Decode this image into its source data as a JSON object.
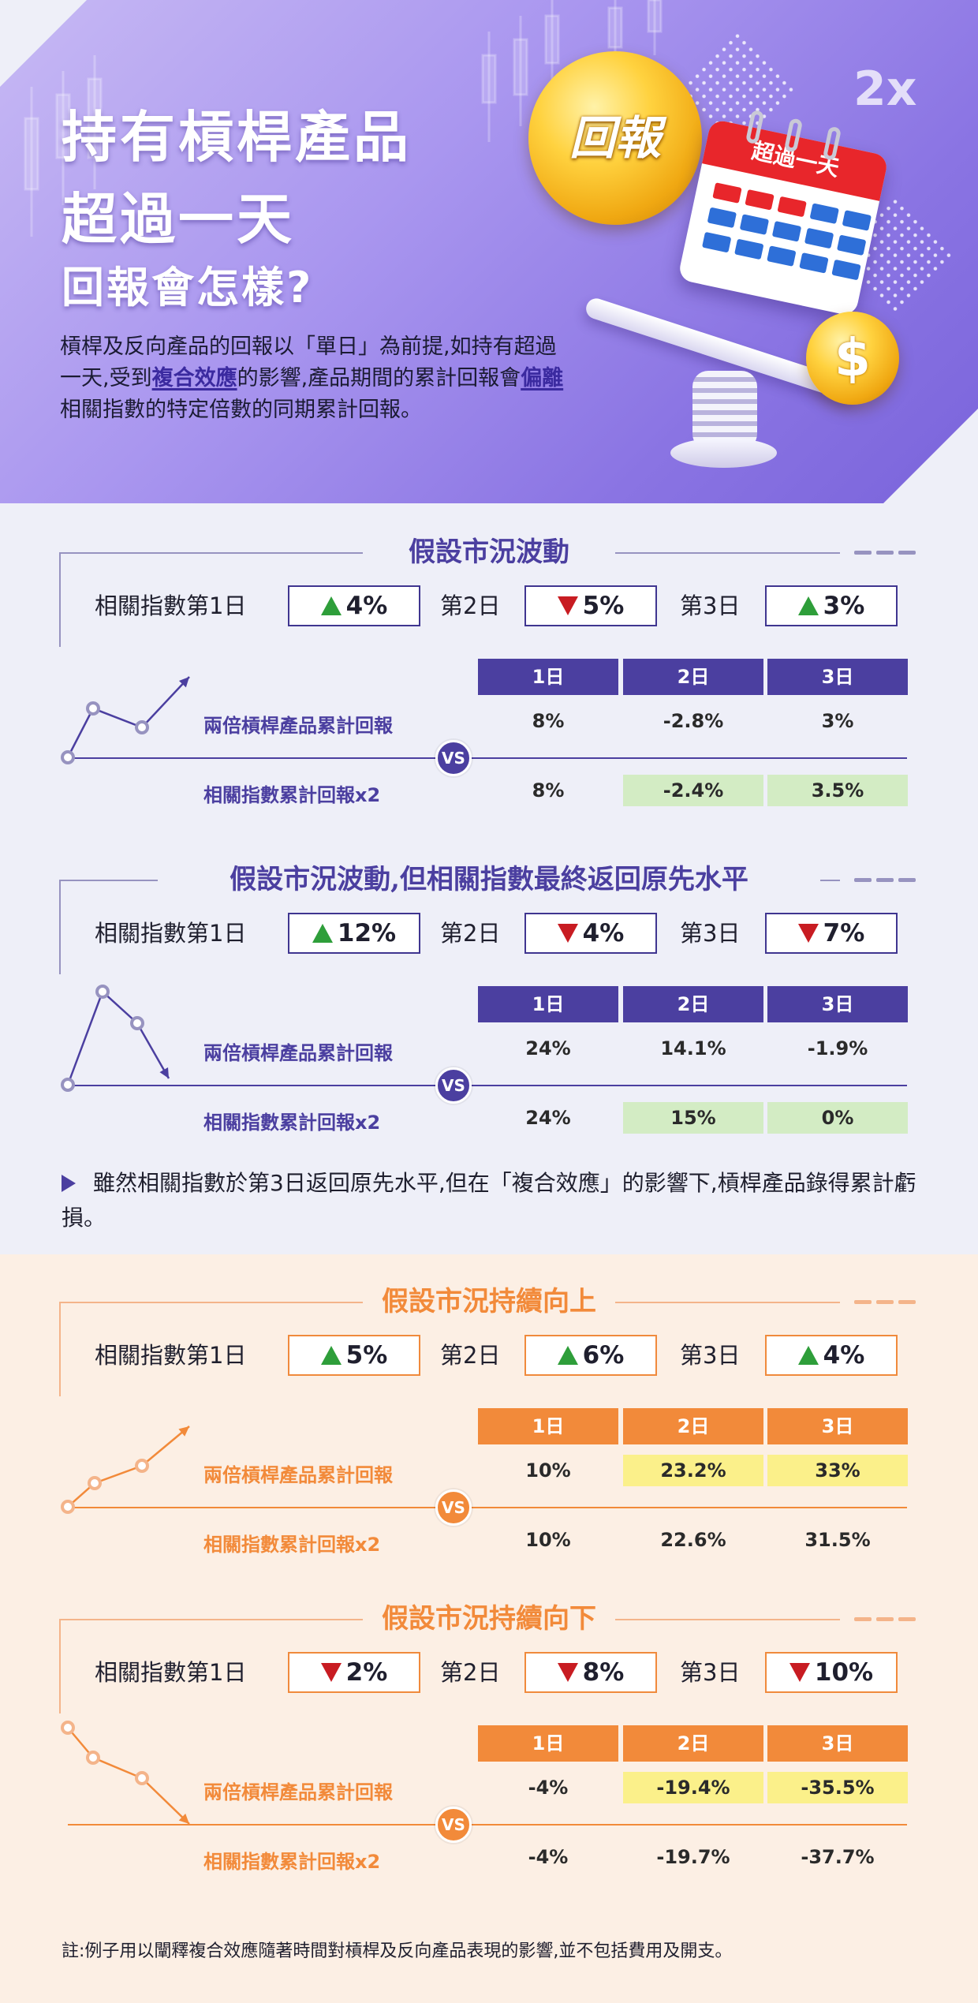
{
  "header": {
    "title_line1": "持有槓桿產品",
    "title_line2": "超過一天",
    "title_line3": "回報會怎樣?",
    "intro_a": "槓桿及反向產品的回報以「單日」為前提,如持有超過一天,受到",
    "intro_hl1": "複合效應",
    "intro_b": "的影響,產品期間的累計回報會",
    "intro_hl2": "偏離",
    "intro_c": "相關指數的特定倍數的同期累計回報。",
    "badge_2x": "2x",
    "coin_big_text": "回報",
    "coin_small_text": "$",
    "calendar_text": "超過一天"
  },
  "common": {
    "index_day1": "相關指數第1日",
    "day2": "第2日",
    "day3": "第3日",
    "col_headers": [
      "1日",
      "2日",
      "3日"
    ],
    "row_product": "兩倍槓桿產品累計回報",
    "row_index": "相關指數累計回報x2",
    "vs": "VS"
  },
  "scenarios": [
    {
      "title": "假設市況波動",
      "theme": "purple",
      "days": [
        {
          "dir": "up",
          "value": "4%"
        },
        {
          "dir": "down",
          "value": "5%"
        },
        {
          "dir": "up",
          "value": "3%"
        }
      ],
      "product": [
        "8%",
        "-2.8%",
        "3%"
      ],
      "index": [
        "8%",
        "-2.4%",
        "3.5%"
      ],
      "highlight_row": "index",
      "highlight_cols": [
        1,
        2
      ]
    },
    {
      "title": "假設市況波動,但相關指數最終返回原先水平",
      "theme": "purple",
      "days": [
        {
          "dir": "up",
          "value": "12%"
        },
        {
          "dir": "down",
          "value": "4%"
        },
        {
          "dir": "down",
          "value": "7%"
        }
      ],
      "product": [
        "24%",
        "14.1%",
        "-1.9%"
      ],
      "index": [
        "24%",
        "15%",
        "0%"
      ],
      "highlight_row": "index",
      "highlight_cols": [
        1,
        2
      ]
    },
    {
      "title": "假設市況持續向上",
      "theme": "orange",
      "days": [
        {
          "dir": "up",
          "value": "5%"
        },
        {
          "dir": "up",
          "value": "6%"
        },
        {
          "dir": "up",
          "value": "4%"
        }
      ],
      "product": [
        "10%",
        "23.2%",
        "33%"
      ],
      "index": [
        "10%",
        "22.6%",
        "31.5%"
      ],
      "highlight_row": "product",
      "highlight_cols": [
        1,
        2
      ]
    },
    {
      "title": "假設市況持續向下",
      "theme": "orange",
      "days": [
        {
          "dir": "down",
          "value": "2%"
        },
        {
          "dir": "down",
          "value": "8%"
        },
        {
          "dir": "down",
          "value": "10%"
        }
      ],
      "product": [
        "-4%",
        "-19.4%",
        "-35.5%"
      ],
      "index": [
        "-4%",
        "-19.7%",
        "-37.7%"
      ],
      "highlight_row": "product",
      "highlight_cols": [
        1,
        2
      ]
    }
  ],
  "note": "雖然相關指數於第3日返回原先水平,但在「複合效應」的影響下,槓桿產品錄得累計虧損。",
  "footnote": "註:例子用以闡釋複合效應隨著時間對槓桿及反向產品表現的影響,並不包括費用及開支。",
  "colors": {
    "purple": "#4b3fa0",
    "purple_box": "#3f3590",
    "orange": "#f28a3a",
    "orange_box": "#f08a3c",
    "green_hl": "#d3ecc4",
    "yellow_hl": "#fbf08a",
    "up": "#2e9e3a",
    "down": "#c81c22"
  }
}
